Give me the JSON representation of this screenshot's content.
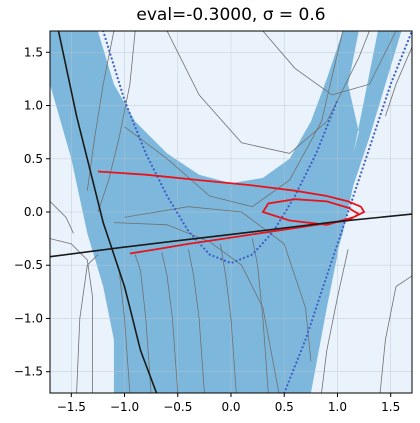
{
  "chart_data": {
    "type": "line",
    "title": "eval=-0.3000, σ = 0.6",
    "xlabel": "",
    "ylabel": "",
    "xlim": [
      -1.7,
      1.7
    ],
    "ylim": [
      -1.7,
      1.7
    ],
    "xticks": [
      -1.5,
      -1.0,
      -0.5,
      0.0,
      0.5,
      1.0,
      1.5
    ],
    "xtick_labels": [
      "−1.5",
      "−1.0",
      "−0.5",
      "0.0",
      "0.5",
      "1.0",
      "1.5"
    ],
    "yticks": [
      -1.5,
      -1.0,
      -0.5,
      0.0,
      0.5,
      1.0,
      1.5
    ],
    "ytick_labels": [
      "−1.5",
      "−1.0",
      "−0.5",
      "0.0",
      "0.5",
      "1.0",
      "1.5"
    ],
    "grid": true,
    "colors": {
      "background": "#eaf3fc",
      "region": "#7db8dc",
      "contour_dark": "#1a1a1a",
      "contour_gray": "#707070",
      "dotted_curve": "#4060c8",
      "trajectory": "#e8141a"
    },
    "series": [
      {
        "kind": "dotted-curve",
        "x": [
          -1.2,
          -1.0,
          -0.8,
          -0.6,
          -0.4,
          -0.2,
          0.0,
          0.2,
          0.4,
          0.6,
          0.8,
          1.0
        ],
        "y": [
          1.7,
          1.05,
          0.55,
          0.15,
          -0.18,
          -0.4,
          -0.48,
          -0.4,
          -0.18,
          0.15,
          0.55,
          1.05
        ]
      },
      {
        "kind": "dotted-curve",
        "x": [
          0.5,
          0.7,
          0.9,
          1.1,
          1.3,
          1.5,
          1.7
        ],
        "y": [
          -1.7,
          -1.2,
          -0.6,
          0.0,
          0.6,
          1.2,
          1.7
        ]
      },
      {
        "kind": "trajectory",
        "x": [
          -1.25,
          -0.8,
          -0.3,
          0.2,
          0.6,
          0.9,
          1.1,
          1.22,
          1.25,
          1.15,
          0.9,
          0.55,
          0.3,
          0.35,
          0.6,
          0.9,
          1.1,
          1.2,
          1.1,
          0.8,
          0.4,
          0.0,
          -0.4,
          -0.7,
          -0.95
        ],
        "y": [
          0.38,
          0.35,
          0.3,
          0.25,
          0.2,
          0.15,
          0.1,
          0.05,
          0.0,
          -0.05,
          -0.12,
          -0.08,
          0.0,
          0.08,
          0.12,
          0.1,
          0.04,
          -0.02,
          -0.08,
          -0.12,
          -0.18,
          -0.24,
          -0.3,
          -0.35,
          -0.39
        ]
      },
      {
        "kind": "separatrix",
        "x": [
          -1.7,
          -1.0,
          -0.5,
          0.0,
          0.5,
          1.0,
          1.7
        ],
        "y": [
          -0.42,
          -0.33,
          -0.27,
          -0.21,
          -0.15,
          -0.09,
          -0.02
        ]
      },
      {
        "kind": "separatrix",
        "x": [
          -1.62,
          -1.45,
          -1.3,
          -1.2,
          -1.1,
          -1.0,
          -0.95,
          -0.85,
          -0.7
        ],
        "y": [
          1.7,
          0.9,
          0.3,
          -0.1,
          -0.4,
          -0.7,
          -0.9,
          -1.3,
          -1.7
        ]
      }
    ]
  }
}
